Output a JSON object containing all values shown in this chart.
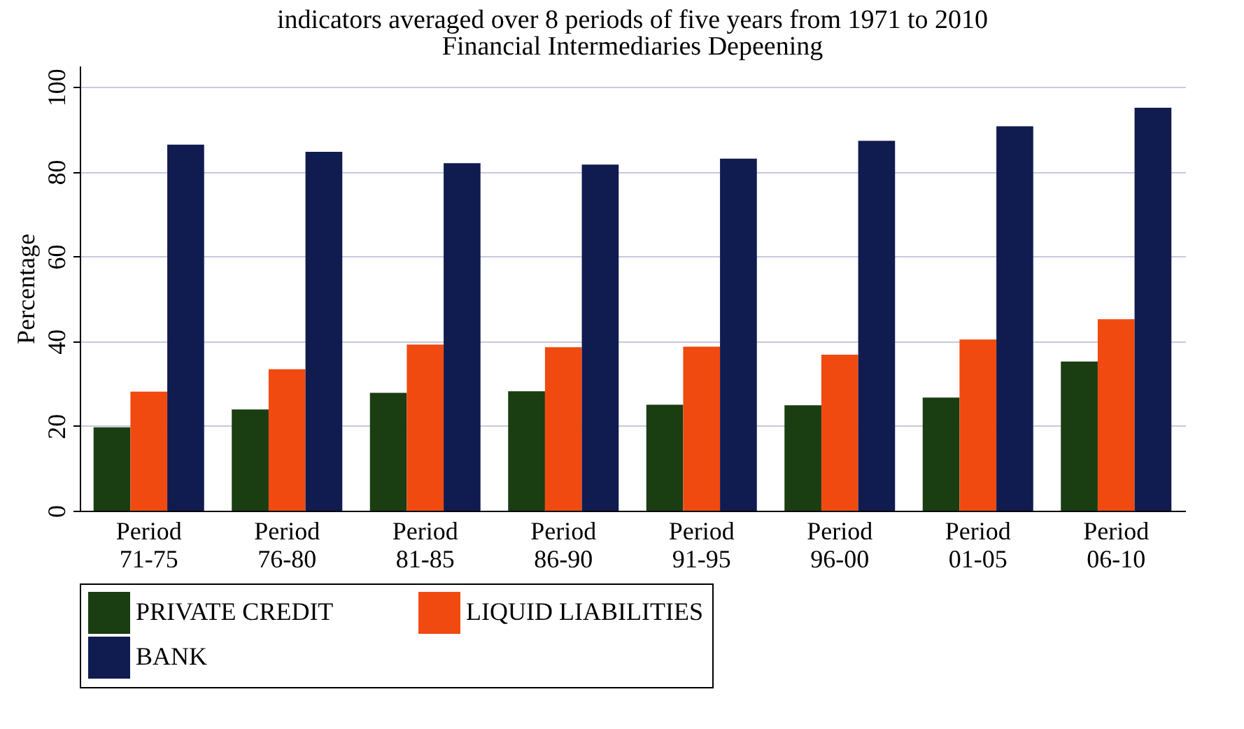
{
  "chart_data": {
    "type": "bar",
    "title": "indicators averaged over 8 periods of five years from 1971 to 2010",
    "subtitle": "Financial Intermediaries Depeening",
    "ylabel": "Percentage",
    "categories": [
      "Period 71-75",
      "Period 76-80",
      "Period 81-85",
      "Period 86-90",
      "Period 91-95",
      "Period 96-00",
      "Period 01-05",
      "Period 06-10"
    ],
    "series": [
      {
        "name": "PRIVATE CREDIT",
        "color": "#1a3d12",
        "values": [
          19.7,
          23.9,
          27.8,
          28.2,
          25.0,
          24.9,
          26.7,
          35.2
        ]
      },
      {
        "name": "LIQUID LIABILITIES",
        "color": "#f04a10",
        "values": [
          28.1,
          33.4,
          39.2,
          38.6,
          38.7,
          36.8,
          40.4,
          45.2
        ]
      },
      {
        "name": "BANK",
        "color": "#101b50",
        "values": [
          86.4,
          84.7,
          82.0,
          81.7,
          83.1,
          87.3,
          90.7,
          95.1
        ]
      }
    ],
    "ylim": [
      0,
      105
    ],
    "yticks": [
      0,
      20,
      40,
      60,
      80,
      100
    ],
    "grid": "y",
    "legend": "bottom"
  }
}
